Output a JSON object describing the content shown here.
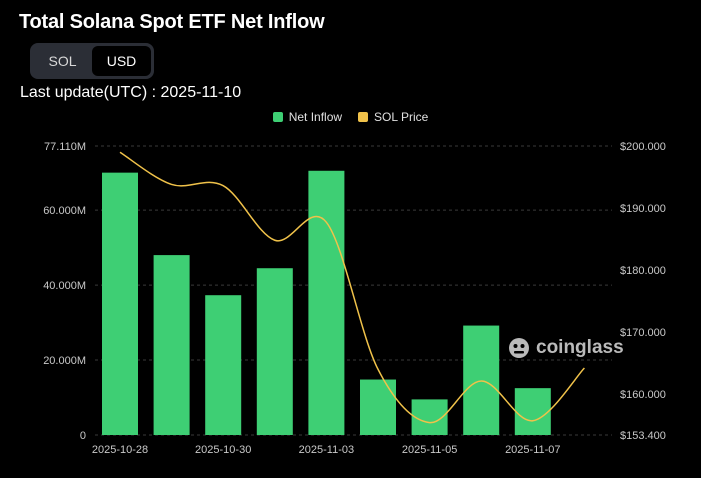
{
  "header": {
    "title": "Total Solana Spot ETF Net Inflow",
    "toggle": {
      "options": [
        "SOL",
        "USD"
      ],
      "selected": "USD"
    },
    "last_update": "Last update(UTC) : 2025-11-10"
  },
  "legend": [
    {
      "label": "Net Inflow",
      "color": "#3ecf74"
    },
    {
      "label": "SOL Price",
      "color": "#f0c24a"
    }
  ],
  "watermark": {
    "text": "coinglass",
    "icon": "coinglass-logo-icon"
  },
  "chart_data": {
    "type": "bar",
    "title": "Total Solana Spot ETF Net Inflow",
    "x_tick_labels": [
      "2025-10-28",
      "2025-10-30",
      "2025-11-03",
      "2025-11-05",
      "2025-11-07"
    ],
    "categories": [
      "2025-10-28",
      "2025-10-29",
      "2025-10-30",
      "2025-10-31",
      "2025-11-03",
      "2025-11-04",
      "2025-11-05",
      "2025-11-06",
      "2025-11-07",
      "2025-11-10"
    ],
    "left_axis": {
      "ticks": [
        "0",
        "20.000M",
        "40.000M",
        "60.000M",
        "77.110M"
      ],
      "min": 0,
      "max": 77.11,
      "unit": "M"
    },
    "right_axis": {
      "ticks": [
        "$153.400",
        "$160.000",
        "$170.000",
        "$180.000",
        "$190.000",
        "$200.000"
      ],
      "min": 153.4,
      "max": 200.0
    },
    "series": [
      {
        "name": "Net Inflow",
        "type": "bar",
        "axis": "left",
        "color": "#3ecf74",
        "values": [
          70.0,
          48.0,
          37.3,
          44.5,
          70.5,
          14.8,
          9.5,
          29.2,
          12.5,
          null
        ]
      },
      {
        "name": "SOL Price",
        "type": "line",
        "axis": "right",
        "color": "#f0c24a",
        "values": [
          199.0,
          193.8,
          193.6,
          184.8,
          187.7,
          164.0,
          155.4,
          162.1,
          155.7,
          164.2
        ]
      }
    ],
    "grid": true,
    "legend_position": "top-center"
  }
}
